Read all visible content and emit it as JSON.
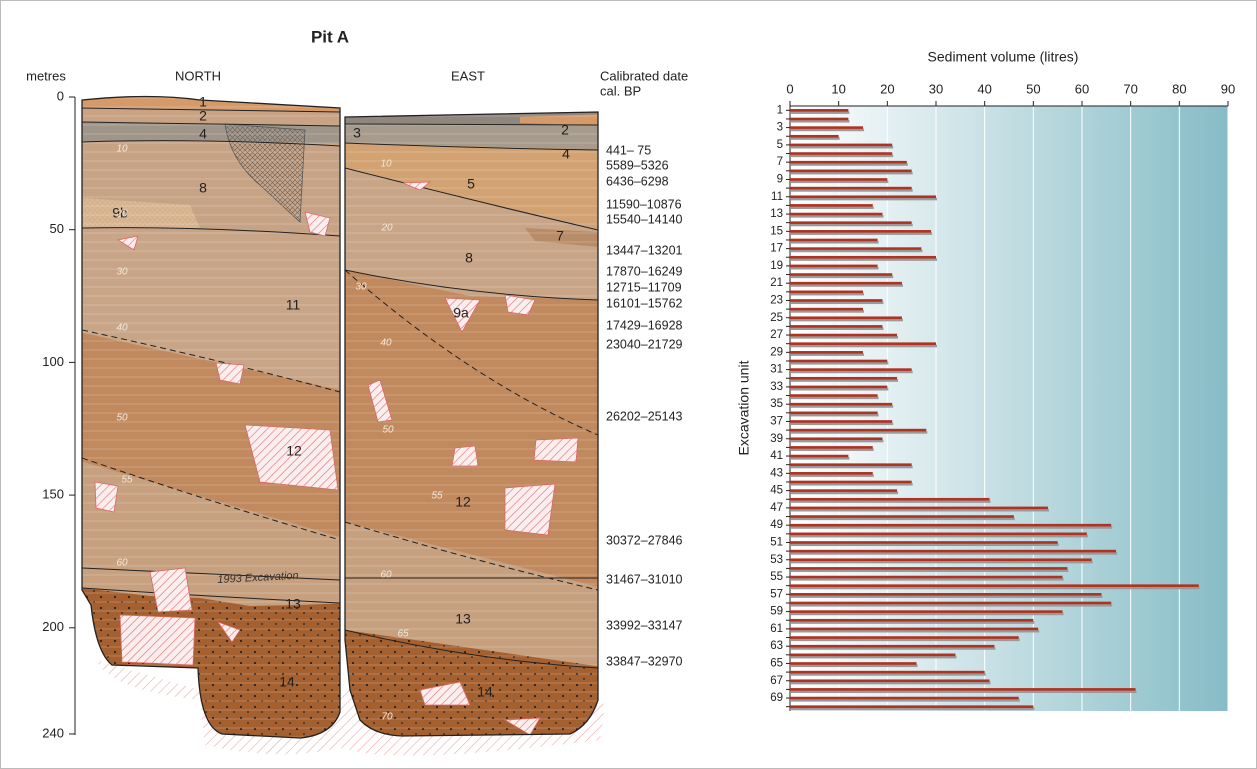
{
  "section": {
    "title": "Pit A",
    "axis_label": "metres",
    "yticks": [
      0,
      50,
      100,
      150,
      200,
      240
    ],
    "north": {
      "heading": "NORTH",
      "layers": [
        "1",
        "2",
        "4",
        "8",
        "9b",
        "11",
        "12",
        "13",
        "14"
      ],
      "depth_marks": [
        "10",
        "20",
        "30",
        "40",
        "50",
        "55",
        "60"
      ]
    },
    "east": {
      "heading": "EAST",
      "layers": [
        "3",
        "2",
        "4",
        "5",
        "7",
        "8",
        "9a",
        "12",
        "13",
        "14"
      ],
      "depth_marks": [
        "10",
        "20",
        "30",
        "40",
        "50",
        "55",
        "60",
        "65",
        "70"
      ]
    },
    "annotation": "1993 Excavation",
    "dates_heading": [
      "Calibrated date",
      "cal. BP"
    ],
    "dates": [
      "441– 75",
      "5589–5326",
      "6436–6298",
      "11590–10876",
      "15540–14140",
      "13447–13201",
      "17870–16249",
      "12715–11709",
      "16101–15762",
      "17429–16928",
      "23040–21729",
      "26202–25143",
      "30372–27846",
      "31467–31010",
      "33992–33147",
      "33847–32970"
    ]
  },
  "chart_data": {
    "type": "bar",
    "orientation": "horizontal",
    "title": "Sediment volume (litres)",
    "y_label": "Excavation unit",
    "categories": [
      "1",
      null,
      "3",
      null,
      "5",
      null,
      "7",
      null,
      "9",
      null,
      "11",
      null,
      "13",
      null,
      "15",
      null,
      "17",
      null,
      "19",
      null,
      "21",
      null,
      "23",
      null,
      "25",
      null,
      "27",
      null,
      "29",
      null,
      "31",
      null,
      "33",
      null,
      "35",
      null,
      "37",
      null,
      "39",
      null,
      "41",
      null,
      "43",
      null,
      "45",
      null,
      "47",
      null,
      "49",
      null,
      "51",
      null,
      "53",
      null,
      "55",
      null,
      "57",
      null,
      "59",
      null,
      "61",
      null,
      "63",
      null,
      "65",
      null,
      "67",
      null,
      "69",
      null
    ],
    "values": [
      12,
      12,
      15,
      10,
      21,
      21,
      24,
      25,
      20,
      25,
      30,
      17,
      19,
      25,
      29,
      18,
      27,
      30,
      18,
      21,
      23,
      15,
      19,
      15,
      23,
      19,
      22,
      30,
      15,
      20,
      25,
      22,
      20,
      18,
      21,
      18,
      21,
      28,
      19,
      17,
      12,
      25,
      17,
      25,
      22,
      41,
      53,
      46,
      66,
      61,
      55,
      67,
      62,
      57,
      56,
      84,
      64,
      66,
      56,
      50,
      51,
      47,
      42,
      34,
      26,
      40,
      41,
      71,
      47,
      50
    ],
    "color": "#b03220",
    "xlim": [
      0,
      90
    ],
    "xticks": [
      0,
      10,
      20,
      30,
      40,
      50,
      60,
      70,
      80,
      90
    ],
    "grid": true
  }
}
